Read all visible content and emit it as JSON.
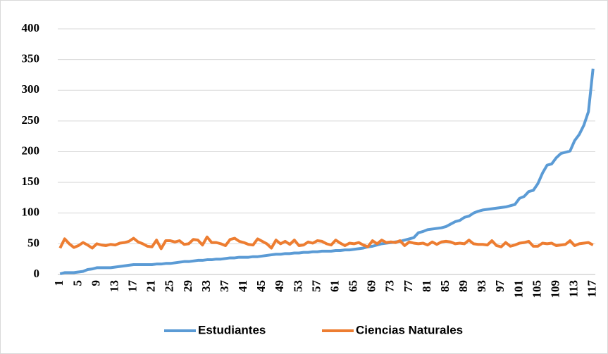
{
  "chart_data": {
    "type": "line",
    "categories": [
      1,
      null,
      null,
      null,
      5,
      null,
      null,
      null,
      9,
      null,
      null,
      null,
      13,
      null,
      null,
      null,
      17,
      null,
      null,
      null,
      21,
      null,
      null,
      null,
      25,
      null,
      null,
      null,
      29,
      null,
      null,
      null,
      33,
      null,
      null,
      null,
      37,
      null,
      null,
      null,
      41,
      null,
      null,
      null,
      45,
      null,
      null,
      null,
      49,
      null,
      null,
      null,
      53,
      null,
      null,
      null,
      57,
      null,
      null,
      null,
      61,
      null,
      null,
      null,
      65,
      null,
      null,
      null,
      69,
      null,
      null,
      null,
      73,
      null,
      null,
      null,
      77,
      null,
      null,
      null,
      81,
      null,
      null,
      null,
      85,
      null,
      null,
      null,
      89,
      null,
      null,
      null,
      93,
      null,
      null,
      null,
      97,
      null,
      null,
      null,
      101,
      null,
      null,
      null,
      105,
      null,
      null,
      null,
      109,
      null,
      null,
      null,
      113,
      null,
      null,
      null,
      117
    ],
    "series": [
      {
        "name": "Estudiantes",
        "color": "#5b9bd5",
        "values": [
          1,
          3,
          3,
          3,
          4,
          5,
          8,
          9,
          11,
          11,
          11,
          11,
          12,
          13,
          14,
          15,
          16,
          16,
          16,
          16,
          16,
          17,
          17,
          18,
          18,
          19,
          20,
          21,
          21,
          22,
          23,
          23,
          24,
          24,
          25,
          25,
          26,
          27,
          27,
          28,
          28,
          28,
          29,
          29,
          30,
          31,
          32,
          33,
          33,
          34,
          34,
          35,
          35,
          36,
          36,
          37,
          37,
          38,
          38,
          38,
          39,
          39,
          40,
          40,
          41,
          42,
          43,
          45,
          46,
          48,
          50,
          51,
          52,
          53,
          54,
          56,
          58,
          60,
          68,
          70,
          73,
          74,
          75,
          76,
          78,
          82,
          86,
          88,
          93,
          95,
          100,
          103,
          105,
          106,
          107,
          108,
          109,
          110,
          112,
          114,
          124,
          127,
          135,
          137,
          148,
          165,
          178,
          180,
          190,
          197,
          199,
          201,
          218,
          228,
          243,
          265,
          335
        ]
      },
      {
        "name": "Ciencias Naturales",
        "color": "#ed7d31",
        "values": [
          43,
          58,
          50,
          44,
          47,
          52,
          48,
          43,
          50,
          48,
          47,
          49,
          48,
          51,
          52,
          54,
          59,
          53,
          50,
          46,
          45,
          56,
          42,
          55,
          55,
          53,
          55,
          49,
          50,
          57,
          56,
          48,
          61,
          52,
          52,
          50,
          47,
          57,
          59,
          54,
          52,
          49,
          48,
          58,
          54,
          50,
          43,
          56,
          50,
          54,
          49,
          56,
          47,
          48,
          53,
          51,
          55,
          54,
          50,
          48,
          56,
          51,
          47,
          51,
          50,
          52,
          48,
          45,
          55,
          50,
          56,
          52,
          53,
          52,
          55,
          47,
          53,
          51,
          50,
          51,
          48,
          53,
          49,
          53,
          54,
          53,
          50,
          51,
          50,
          56,
          50,
          49,
          49,
          48,
          55,
          47,
          45,
          52,
          46,
          48,
          51,
          52,
          54,
          46,
          46,
          51,
          50,
          51,
          47,
          48,
          49,
          55,
          47,
          50,
          51,
          52,
          48
        ]
      }
    ],
    "ylim": [
      0,
      400
    ],
    "yticks": [
      0,
      50,
      100,
      150,
      200,
      250,
      300,
      350,
      400
    ],
    "grid": true,
    "legend": "bottom"
  }
}
